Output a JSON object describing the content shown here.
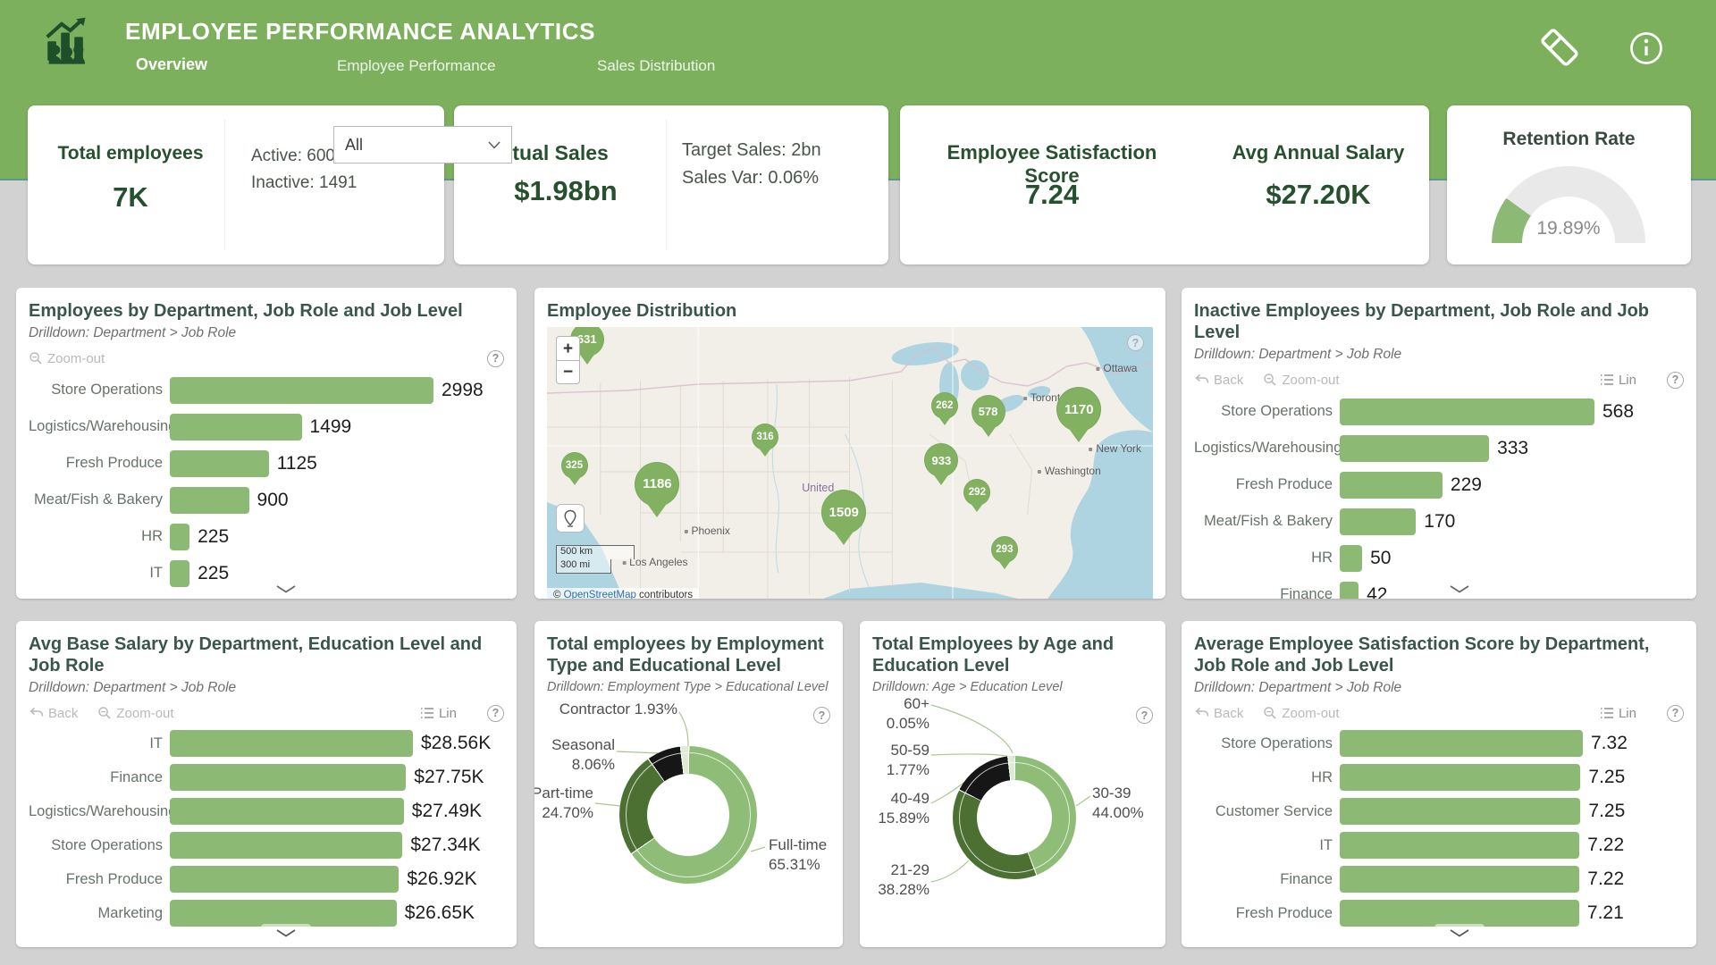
{
  "colors": {
    "header_green": "#7cb05c",
    "bar_green": "#8cba74",
    "dark_green": "#27512e",
    "title_green": "#3a564c",
    "pin_green": "#82b161",
    "link_blue": "#2a6fb5",
    "donut_dark": "#4c7031",
    "donut_black": "#161616",
    "donut_pale": "#dfecd3"
  },
  "header": {
    "title": "EMPLOYEE PERFORMANCE ANALYTICS",
    "tabs": [
      {
        "label": "Overview",
        "active": true
      },
      {
        "label": "Employee Performance",
        "active": false
      },
      {
        "label": "Sales Distribution",
        "active": false
      }
    ]
  },
  "ui": {
    "all": "All",
    "back": "Back",
    "zoom_out": "Zoom-out",
    "lin": "Lin",
    "help": "?"
  },
  "map_ui": {
    "zoom_in": "+",
    "zoom_out": "−",
    "scale_km": "500 km",
    "scale_mi": "300 mi",
    "attr_prefix": "© ",
    "attr_link": "OpenStreetMap",
    "attr_suffix": " contributors"
  },
  "kpis": {
    "total_employees": {
      "label": "Total employees",
      "value": "7K"
    },
    "active": "Active: 6009",
    "inactive": "Inactive: 1491",
    "actual_sales": {
      "label": "Actual Sales",
      "value": "$1.98bn"
    },
    "target_sales": "Target Sales: 2bn",
    "sales_var": "Sales Var: 0.06%",
    "satisfaction": {
      "label": "Employee Satisfaction Score",
      "value": "7.24"
    },
    "avg_salary": {
      "label": "Avg Annual Salary",
      "value": "$27.20K"
    },
    "retention": {
      "label": "Retention Rate",
      "value": "19.89%"
    }
  },
  "chart_data": [
    {
      "id": "employees_by_department",
      "type": "bar",
      "orientation": "horizontal",
      "title": "Employees by Department, Job Role and Job Level",
      "subtitle": "Drilldown: Department > Job Role",
      "categories": [
        "Store Operations",
        "Logistics/Warehousing",
        "Fresh Produce",
        "Meat/Fish & Bakery",
        "HR",
        "IT"
      ],
      "values": [
        2998,
        1499,
        1125,
        900,
        225,
        225
      ],
      "value_labels": [
        "2998",
        "1499",
        "1125",
        "900",
        "225",
        "225"
      ]
    },
    {
      "id": "employee_distribution",
      "type": "map",
      "title": "Employee Distribution",
      "markers": [
        {
          "value": "631",
          "x": 6.6,
          "y": 4.5,
          "size": "m"
        },
        {
          "value": "316",
          "x": 36.0,
          "y": 40.0,
          "size": "s"
        },
        {
          "value": "262",
          "x": 65.6,
          "y": 28.7,
          "size": "s"
        },
        {
          "value": "578",
          "x": 72.8,
          "y": 30.7,
          "size": "m"
        },
        {
          "value": "1170",
          "x": 87.8,
          "y": 30.0,
          "size": "l"
        },
        {
          "value": "933",
          "x": 65.1,
          "y": 48.4,
          "size": "m"
        },
        {
          "value": "325",
          "x": 4.5,
          "y": 50.4,
          "size": "s"
        },
        {
          "value": "1186",
          "x": 18.2,
          "y": 57.0,
          "size": "l"
        },
        {
          "value": "1509",
          "x": 49.0,
          "y": 67.3,
          "size": "l"
        },
        {
          "value": "292",
          "x": 71.0,
          "y": 60.2,
          "size": "s"
        },
        {
          "value": "293",
          "x": 75.5,
          "y": 81.0,
          "size": "s"
        }
      ],
      "places": [
        {
          "name": "Ottawa",
          "x": 91.3,
          "y": 15.0,
          "dot": true
        },
        {
          "name": "Toronto",
          "x": 79.3,
          "y": 25.6,
          "dot": true
        },
        {
          "name": "New York",
          "x": 90.3,
          "y": 44.1,
          "dot": true
        },
        {
          "name": "Washington",
          "x": 82.0,
          "y": 52.4,
          "dot": true
        },
        {
          "name": "Phoenix",
          "x": 23.4,
          "y": 74.0,
          "dot": true
        },
        {
          "name": "Los Angeles",
          "x": 13.5,
          "y": 85.4,
          "dot": true
        },
        {
          "name": "United",
          "x": 42.6,
          "y": 58.3,
          "region": true
        }
      ]
    },
    {
      "id": "inactive_employees",
      "type": "bar",
      "orientation": "horizontal",
      "title": "Inactive Employees by Department, Job Role and Job Level",
      "subtitle": "Drilldown: Department > Job Role",
      "categories": [
        "Store Operations",
        "Logistics/Warehousing",
        "Fresh Produce",
        "Meat/Fish & Bakery",
        "HR",
        "Finance"
      ],
      "values": [
        568,
        333,
        229,
        170,
        50,
        42
      ],
      "value_labels": [
        "568",
        "333",
        "229",
        "170",
        "50",
        "42"
      ]
    },
    {
      "id": "avg_base_salary",
      "type": "bar",
      "orientation": "horizontal",
      "title": "Avg Base Salary by Department, Education Level and Job Role",
      "subtitle": "Drilldown: Department > Job Role",
      "categories": [
        "IT",
        "Finance",
        "Logistics/Warehousing",
        "Store Operations",
        "Fresh Produce",
        "Marketing"
      ],
      "values": [
        28.56,
        27.75,
        27.49,
        27.34,
        26.92,
        26.65
      ],
      "value_labels": [
        "$28.56K",
        "$27.75K",
        "$27.49K",
        "$27.34K",
        "$26.92K",
        "$26.65K"
      ]
    },
    {
      "id": "employment_type_donut",
      "type": "pie",
      "title": "Total employees by Employment Type and Educational Level",
      "subtitle": "Drilldown: Employment Type > Educational Level",
      "slices": [
        {
          "label": "Full-time",
          "pct": 65.31,
          "color": "#8fbc77"
        },
        {
          "label": "Part-time",
          "pct": 24.7,
          "color": "#4c7031"
        },
        {
          "label": "Seasonal",
          "pct": 8.06,
          "color": "#161616"
        },
        {
          "label": "Contractor",
          "pct": 1.93,
          "color": "#dfecd3"
        }
      ],
      "callouts": [
        {
          "lines": [
            "Contractor 1.93%"
          ]
        },
        {
          "lines": [
            "Seasonal",
            "8.06%"
          ]
        },
        {
          "lines": [
            "Part-time",
            "24.70%"
          ]
        },
        {
          "lines": [
            "Full-time",
            "65.31%"
          ]
        }
      ]
    },
    {
      "id": "age_donut",
      "type": "pie",
      "title": "Total Employees by Age and Education Level",
      "subtitle": "Drilldown: Age > Education Level",
      "slices": [
        {
          "label": "30-39",
          "pct": 44.0,
          "color": "#8fbc77"
        },
        {
          "label": "21-29",
          "pct": 38.28,
          "color": "#4c7031"
        },
        {
          "label": "40-49",
          "pct": 15.89,
          "color": "#161616"
        },
        {
          "label": "50-59",
          "pct": 1.77,
          "color": "#dfecd3"
        },
        {
          "label": "60+",
          "pct": 0.05,
          "color": "#9aa79a"
        }
      ],
      "callouts": [
        {
          "lines": [
            "60+",
            "0.05%"
          ]
        },
        {
          "lines": [
            "50-59",
            "1.77%"
          ]
        },
        {
          "lines": [
            "40-49",
            "15.89%"
          ]
        },
        {
          "lines": [
            "21-29",
            "38.28%"
          ]
        },
        {
          "lines": [
            "30-39",
            "44.00%"
          ]
        }
      ]
    },
    {
      "id": "avg_satisfaction",
      "type": "bar",
      "orientation": "horizontal",
      "title": "Average Employee Satisfaction Score by Department, Job Role and Job Level",
      "subtitle": "Drilldown: Department > Job Role",
      "categories": [
        "Store Operations",
        "HR",
        "Customer Service",
        "IT",
        "Finance",
        "Fresh Produce"
      ],
      "values": [
        7.32,
        7.25,
        7.25,
        7.22,
        7.22,
        7.21
      ],
      "value_labels": [
        "7.32",
        "7.25",
        "7.25",
        "7.22",
        "7.22",
        "7.21"
      ]
    },
    {
      "id": "retention_gauge",
      "type": "gauge",
      "value": 19.89,
      "label": "19.89%",
      "title": "Retention Rate"
    }
  ]
}
